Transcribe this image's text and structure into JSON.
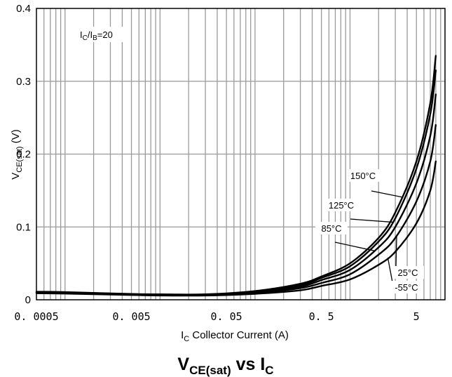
{
  "chart_data": {
    "type": "line",
    "title": "VCE(sat) vs IC",
    "title_parts": {
      "main": "V",
      "sub": "CE(sat)",
      "mid": " vs I",
      "sub2": "C"
    },
    "xlabel_parts": {
      "main": "I",
      "sub": "C",
      "rest": " Collector Current (A)"
    },
    "ylabel_parts": {
      "main": "V",
      "sub": "CE(sat)",
      "rest": " (V)"
    },
    "x_scale": "log",
    "xlim": [
      0.0005,
      10
    ],
    "ylim": [
      0,
      0.4
    ],
    "x_ticks": [
      {
        "value": 0.0005,
        "label": "0. 0005"
      },
      {
        "value": 0.005,
        "label": "0. 005"
      },
      {
        "value": 0.05,
        "label": "0. 05"
      },
      {
        "value": 0.5,
        "label": "0. 5"
      },
      {
        "value": 5,
        "label": "5"
      }
    ],
    "y_ticks": [
      {
        "value": 0,
        "label": "0"
      },
      {
        "value": 0.1,
        "label": "0.1"
      },
      {
        "value": 0.2,
        "label": "0.2"
      },
      {
        "value": 0.3,
        "label": "0.3"
      },
      {
        "value": 0.4,
        "label": "0.4"
      }
    ],
    "grid": true,
    "condition_label": {
      "main": "I",
      "sub1": "C",
      "mid": "/I",
      "sub2": "B",
      "rest": "=20"
    },
    "series": [
      {
        "name": "150°C",
        "x": [
          0.0005,
          0.001,
          0.005,
          0.01,
          0.03,
          0.1,
          0.3,
          0.5,
          1,
          2,
          3,
          5,
          7,
          8
        ],
        "y": [
          0.011,
          0.0105,
          0.008,
          0.0075,
          0.0075,
          0.012,
          0.022,
          0.032,
          0.05,
          0.085,
          0.12,
          0.19,
          0.27,
          0.335
        ]
      },
      {
        "name": "125°C",
        "x": [
          0.0005,
          0.001,
          0.005,
          0.01,
          0.03,
          0.1,
          0.3,
          0.5,
          1,
          2,
          3,
          5,
          7,
          8
        ],
        "y": [
          0.0105,
          0.01,
          0.0078,
          0.0072,
          0.0072,
          0.011,
          0.02,
          0.03,
          0.046,
          0.08,
          0.112,
          0.18,
          0.255,
          0.315
        ]
      },
      {
        "name": "85°C",
        "x": [
          0.0005,
          0.001,
          0.005,
          0.01,
          0.03,
          0.1,
          0.3,
          0.5,
          1,
          2,
          3,
          5,
          7,
          8
        ],
        "y": [
          0.01,
          0.0095,
          0.0074,
          0.0068,
          0.0068,
          0.0102,
          0.018,
          0.027,
          0.041,
          0.072,
          0.1,
          0.16,
          0.225,
          0.282
        ]
      },
      {
        "name": "25°C",
        "x": [
          0.0005,
          0.001,
          0.005,
          0.01,
          0.03,
          0.1,
          0.3,
          0.5,
          1,
          2,
          3,
          5,
          7,
          8
        ],
        "y": [
          0.0095,
          0.009,
          0.007,
          0.0063,
          0.0063,
          0.0092,
          0.016,
          0.023,
          0.035,
          0.062,
          0.085,
          0.135,
          0.19,
          0.24
        ]
      },
      {
        "name": "-55°C",
        "x": [
          0.0005,
          0.001,
          0.005,
          0.01,
          0.03,
          0.1,
          0.3,
          0.5,
          1,
          2,
          3,
          5,
          7,
          8
        ],
        "y": [
          0.009,
          0.0085,
          0.0066,
          0.0059,
          0.0059,
          0.0082,
          0.013,
          0.019,
          0.028,
          0.048,
          0.066,
          0.105,
          0.15,
          0.19
        ]
      }
    ]
  }
}
